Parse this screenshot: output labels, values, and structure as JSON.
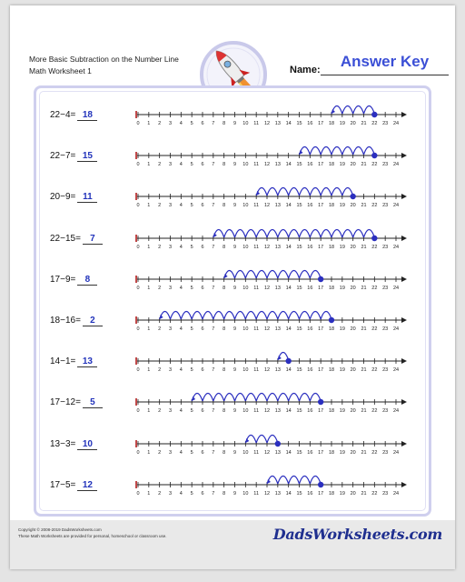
{
  "header": {
    "title_line1": "More Basic Subtraction on the Number Line",
    "title_line2": "Math Worksheet 1",
    "name_label": "Name:",
    "answer_key": "Answer Key"
  },
  "number_line": {
    "min": 0,
    "max": 24
  },
  "problems": [
    {
      "expression": "22−4=",
      "answer": "18",
      "start": 22,
      "end": 18
    },
    {
      "expression": "22−7=",
      "answer": "15",
      "start": 22,
      "end": 15
    },
    {
      "expression": "20−9=",
      "answer": "11",
      "start": 20,
      "end": 11
    },
    {
      "expression": "22−15=",
      "answer": "7",
      "start": 22,
      "end": 7
    },
    {
      "expression": "17−9=",
      "answer": "8",
      "start": 17,
      "end": 8
    },
    {
      "expression": "18−16=",
      "answer": "2",
      "start": 18,
      "end": 2
    },
    {
      "expression": "14−1=",
      "answer": "13",
      "start": 14,
      "end": 13
    },
    {
      "expression": "17−12=",
      "answer": "5",
      "start": 17,
      "end": 5
    },
    {
      "expression": "13−3=",
      "answer": "10",
      "start": 13,
      "end": 10
    },
    {
      "expression": "17−5=",
      "answer": "12",
      "start": 17,
      "end": 12
    }
  ],
  "footer": {
    "copyright": "Copyright © 2008-2019 DadsWorksheets.com",
    "usage": "These Math Worksheets are provided for personal, homeschool or classroom use.",
    "brand": "DadsWorksheets.com"
  },
  "colors": {
    "arc": "#2b2fbf",
    "answer": "#2233bb",
    "answer_key": "#3b4fd6",
    "box_border": "#cfcfee"
  },
  "icons": [
    "rocket-icon"
  ]
}
